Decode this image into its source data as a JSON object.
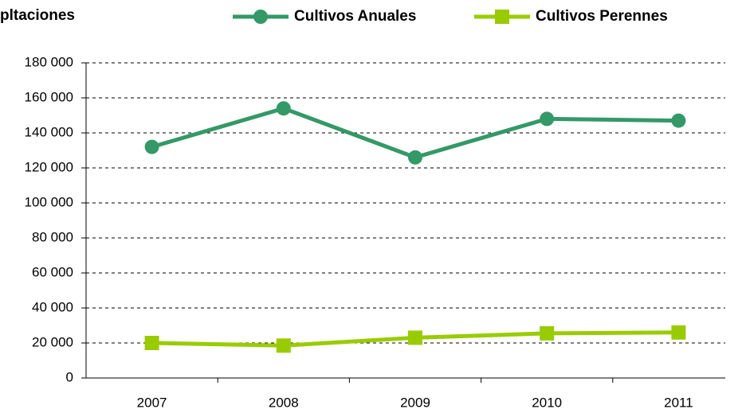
{
  "chart_data": {
    "type": "line",
    "title": "pltaciones",
    "categories": [
      "2007",
      "2008",
      "2009",
      "2010",
      "2011"
    ],
    "series": [
      {
        "name": "Cultivos Anuales",
        "color": "#339966",
        "marker": "circle",
        "values": [
          132000,
          154000,
          126000,
          148000,
          147000
        ]
      },
      {
        "name": "Cultivos Perennes",
        "color": "#99cc00",
        "marker": "square",
        "values": [
          20000,
          18500,
          23000,
          25500,
          26000
        ]
      }
    ],
    "ylim": [
      0,
      180000
    ],
    "yticks": [
      0,
      {
        "value": 20000,
        "label": "20 000"
      },
      {
        "value": 40000,
        "label": "40 000"
      },
      {
        "value": 60000,
        "label": "60 000"
      },
      {
        "value": 80000,
        "label": "80 000"
      },
      {
        "value": 100000,
        "label": "100 000"
      },
      {
        "value": 120000,
        "label": "120 000"
      },
      {
        "value": 140000,
        "label": "140 000"
      },
      {
        "value": 160000,
        "label": "160 000"
      },
      {
        "value": 180000,
        "label": "180 000"
      }
    ],
    "grid": true,
    "legend": "top"
  }
}
